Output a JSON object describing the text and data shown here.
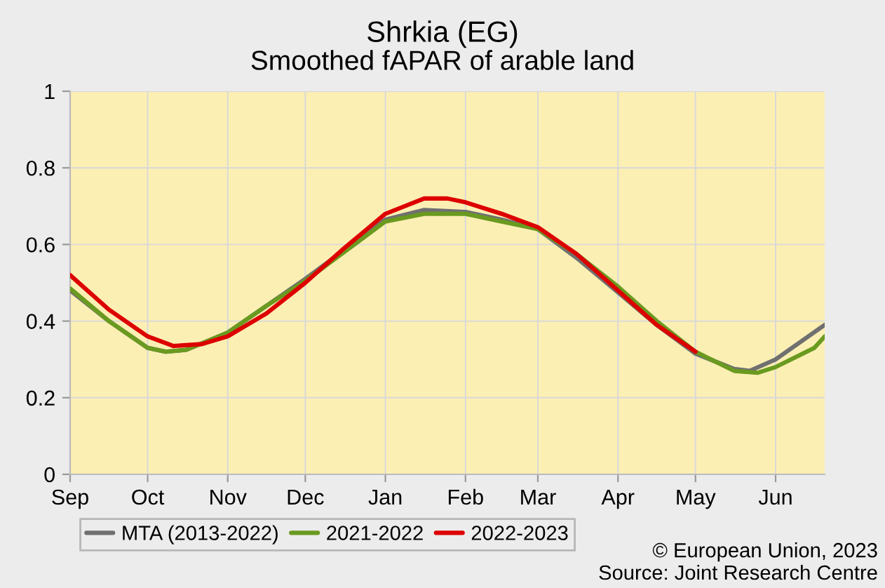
{
  "chart_data": {
    "type": "line",
    "title": "Shrkia (EG)",
    "subtitle": "Smoothed fAPAR of arable land",
    "annotations": [
      "© European Union, 2023",
      "Source: Joint Research Centre"
    ],
    "xlim": [
      "2022-09-01",
      "2023-06-20"
    ],
    "ylim": [
      0,
      1
    ],
    "xticks": [
      {
        "value": "2022-09-01",
        "label": "Sep"
      },
      {
        "value": "2022-10-01",
        "label": "Oct"
      },
      {
        "value": "2022-11-01",
        "label": "Nov"
      },
      {
        "value": "2022-12-01",
        "label": "Dec"
      },
      {
        "value": "2023-01-01",
        "label": "Jan"
      },
      {
        "value": "2023-02-01",
        "label": "Feb"
      },
      {
        "value": "2023-03-01",
        "label": "Mar"
      },
      {
        "value": "2023-04-01",
        "label": "Apr"
      },
      {
        "value": "2023-05-01",
        "label": "May"
      },
      {
        "value": "2023-06-01",
        "label": "Jun"
      }
    ],
    "yticks": [
      0,
      0.2,
      0.4,
      0.6,
      0.8,
      1
    ],
    "grid": true,
    "legend": "bottom left",
    "marker": "none",
    "line_style": "solid",
    "series": [
      {
        "name": "MTA (2013-2022)",
        "color": "#707070",
        "x": [
          "2022-09-01",
          "2022-09-16",
          "2022-10-01",
          "2022-10-08",
          "2022-10-16",
          "2022-11-01",
          "2022-11-16",
          "2022-12-01",
          "2022-12-16",
          "2023-01-01",
          "2023-01-16",
          "2023-02-01",
          "2023-02-15",
          "2023-03-01",
          "2023-03-16",
          "2023-04-01",
          "2023-04-16",
          "2023-05-01",
          "2023-05-16",
          "2023-05-22",
          "2023-06-01",
          "2023-06-20"
        ],
        "values": [
          0.48,
          0.4,
          0.33,
          0.32,
          0.325,
          0.37,
          0.44,
          0.51,
          0.585,
          0.665,
          0.69,
          0.685,
          0.665,
          0.64,
          0.565,
          0.475,
          0.39,
          0.315,
          0.275,
          0.27,
          0.3,
          0.39
        ]
      },
      {
        "name": "2021-2022",
        "color": "#6a9a1f",
        "x": [
          "2022-09-01",
          "2022-09-16",
          "2022-10-01",
          "2022-10-08",
          "2022-10-16",
          "2022-11-01",
          "2022-11-16",
          "2022-12-01",
          "2022-12-16",
          "2023-01-01",
          "2023-01-16",
          "2023-02-01",
          "2023-02-15",
          "2023-03-01",
          "2023-03-16",
          "2023-04-01",
          "2023-04-16",
          "2023-05-01",
          "2023-05-16",
          "2023-05-25",
          "2023-06-01",
          "2023-06-16",
          "2023-06-20"
        ],
        "values": [
          0.485,
          0.4,
          0.33,
          0.32,
          0.325,
          0.37,
          0.44,
          0.505,
          0.58,
          0.66,
          0.68,
          0.68,
          0.66,
          0.64,
          0.575,
          0.49,
          0.4,
          0.32,
          0.27,
          0.265,
          0.28,
          0.33,
          0.36
        ]
      },
      {
        "name": "2022-2023",
        "color": "#dd0000",
        "x": [
          "2022-09-01",
          "2022-09-16",
          "2022-10-01",
          "2022-10-11",
          "2022-10-22",
          "2022-11-01",
          "2022-11-16",
          "2022-12-01",
          "2022-12-16",
          "2023-01-01",
          "2023-01-16",
          "2023-01-25",
          "2023-02-01",
          "2023-02-15",
          "2023-03-01",
          "2023-03-16",
          "2023-04-01",
          "2023-04-16",
          "2023-05-01"
        ],
        "values": [
          0.52,
          0.43,
          0.36,
          0.335,
          0.34,
          0.36,
          0.42,
          0.5,
          0.59,
          0.68,
          0.72,
          0.72,
          0.71,
          0.68,
          0.645,
          0.575,
          0.48,
          0.39,
          0.32
        ]
      }
    ]
  }
}
